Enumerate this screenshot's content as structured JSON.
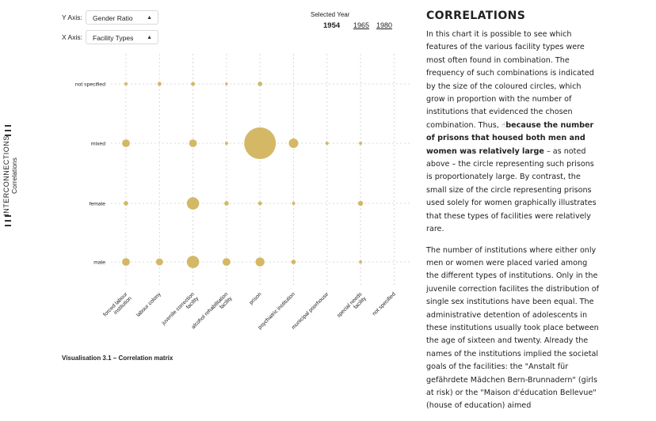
{
  "nav": {
    "section": "INTERCONNECTIONS",
    "subsection": "Correlations"
  },
  "selectors": {
    "y_label": "Y Axis:",
    "y_value": "Gender Ratio",
    "x_label": "X Axis:",
    "x_value": "Facility Types"
  },
  "year_selector": {
    "title": "Selected Year",
    "years": [
      "1954",
      "1965",
      "1980"
    ],
    "selected": "1954"
  },
  "caption": "Visualisation 3.1 – Correlation matrix",
  "panel": {
    "heading": "CORRELATIONS",
    "p1_a": "In this chart it is possible to see which features of the various facility types were most often found in combination. The frequency of such combinations is indicated by the size of the coloured circles, which grow in proportion with the number of institutions that evidenced the chosen combination. Thus, ",
    "p1_bold": "because the number of prisons that housed both men and women was relatively large",
    "p1_b": " – as noted above – the circle representing such prisons is proportionately large. By contrast, the small size of the circle representing prisons used solely for women graphically illustrates that these types of facilities were relatively rare.",
    "p2": "The number of institutions where either only men or women were placed varied among the different types of institutions. Only in the juvenile correction facilites the distribution of single sex institutions have been equal. The administrative detention of adolescents in these institutions usually took place between the age of sixteen and twenty. Already the names of the institutions implied the societal goals of the facilities: the \"Anstalt für gefährdete Mädchen Bern-Brunnadern\" (girls at risk) or the \"Maison d'éducation Bellevue\" (house of education) aimed"
  },
  "colors": {
    "bubble": "#d4b866",
    "grid": "#cfcfcf"
  },
  "chart_data": {
    "type": "scatter",
    "encoding": "bubble size = number of institutions",
    "x_categories": [
      "forced labour institution",
      "labour colony",
      "juvenile correction facility",
      "alcohol rehabilitation facility",
      "prison",
      "psychiatric institution",
      "municipal poorhouse",
      "special needs facility",
      "not specified"
    ],
    "y_categories": [
      "not specified",
      "mixed",
      "female",
      "male"
    ],
    "points": [
      {
        "x": "forced labour institution",
        "y": "not specified",
        "value": 1
      },
      {
        "x": "labour colony",
        "y": "not specified",
        "value": 1.5
      },
      {
        "x": "juvenile correction facility",
        "y": "not specified",
        "value": 1.5
      },
      {
        "x": "alcohol rehabilitation facility",
        "y": "not specified",
        "value": 0.7
      },
      {
        "x": "prison",
        "y": "not specified",
        "value": 2
      },
      {
        "x": "forced labour institution",
        "y": "mixed",
        "value": 6
      },
      {
        "x": "juvenile correction facility",
        "y": "mixed",
        "value": 6
      },
      {
        "x": "alcohol rehabilitation facility",
        "y": "mixed",
        "value": 1
      },
      {
        "x": "prison",
        "y": "mixed",
        "value": 100
      },
      {
        "x": "psychiatric institution",
        "y": "mixed",
        "value": 9
      },
      {
        "x": "municipal poorhouse",
        "y": "mixed",
        "value": 1
      },
      {
        "x": "special needs facility",
        "y": "mixed",
        "value": 1
      },
      {
        "x": "forced labour institution",
        "y": "female",
        "value": 2
      },
      {
        "x": "juvenile correction facility",
        "y": "female",
        "value": 15
      },
      {
        "x": "alcohol rehabilitation facility",
        "y": "female",
        "value": 2
      },
      {
        "x": "prison",
        "y": "female",
        "value": 1.5
      },
      {
        "x": "psychiatric institution",
        "y": "female",
        "value": 1
      },
      {
        "x": "special needs facility",
        "y": "female",
        "value": 2.5
      },
      {
        "x": "forced labour institution",
        "y": "male",
        "value": 6
      },
      {
        "x": "labour colony",
        "y": "male",
        "value": 5
      },
      {
        "x": "juvenile correction facility",
        "y": "male",
        "value": 15
      },
      {
        "x": "alcohol rehabilitation facility",
        "y": "male",
        "value": 6
      },
      {
        "x": "prison",
        "y": "male",
        "value": 8
      },
      {
        "x": "psychiatric institution",
        "y": "male",
        "value": 2
      },
      {
        "x": "special needs facility",
        "y": "male",
        "value": 1
      }
    ],
    "xlabel": "",
    "ylabel": "",
    "grid": true
  }
}
